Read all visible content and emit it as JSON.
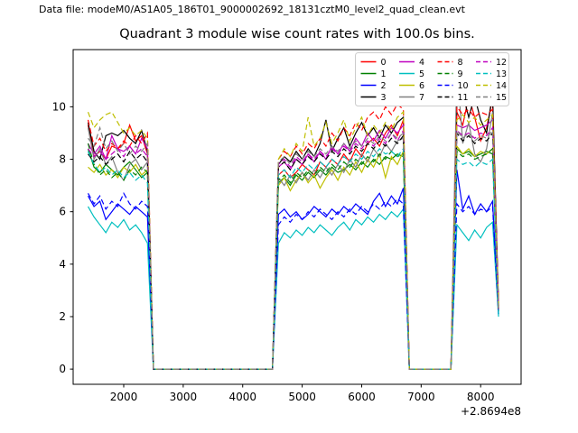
{
  "header": {
    "data_file_label": "Data file: modeM0/AS1A05_186T01_9000002692_18131cztM0_level2_quad_clean.evt"
  },
  "chart_data": {
    "type": "line",
    "title": "Quadrant 3 module wise count rates with 100.0s bins.",
    "xlabel": "",
    "ylabel": "",
    "x_offset_text": "+2.8694e8",
    "xlim": [
      1150,
      8680
    ],
    "ylim": [
      -0.58,
      12.18
    ],
    "x_ticks": [
      2000,
      3000,
      4000,
      5000,
      6000,
      7000,
      8000
    ],
    "y_ticks": [
      0,
      2,
      4,
      6,
      8,
      10
    ],
    "grid": false,
    "legend_position": "upper right",
    "legend_columns": 4,
    "x_start": 1400,
    "x_step": 100,
    "series": [
      {
        "name": "0",
        "color": "#ff0000",
        "style": "solid",
        "values": [
          9.3,
          8.1,
          8.3,
          8.0,
          8.5,
          8.4,
          8.6,
          9.3,
          8.7,
          8.9,
          8.2,
          0,
          0,
          0,
          0,
          0,
          0,
          0,
          0,
          0,
          0,
          0,
          0,
          0,
          0,
          0,
          0,
          0,
          0,
          0,
          0,
          0,
          7.4,
          7.6,
          7.3,
          7.5,
          7.8,
          7.6,
          7.4,
          7.9,
          7.7,
          8.0,
          7.8,
          8.2,
          7.9,
          8.4,
          8.1,
          8.6,
          8.8,
          8.5,
          9.0,
          9.3,
          8.9,
          9.5,
          0,
          0,
          0,
          0,
          0,
          0,
          0,
          0,
          9.8,
          9.3,
          10.4,
          9.6,
          8.7,
          9.2,
          10.3,
          2.4
        ]
      },
      {
        "name": "1",
        "color": "#008000",
        "style": "solid",
        "values": [
          8.4,
          7.7,
          7.5,
          7.8,
          7.6,
          7.4,
          7.7,
          7.9,
          7.6,
          7.3,
          7.5,
          0,
          0,
          0,
          0,
          0,
          0,
          0,
          0,
          0,
          0,
          0,
          0,
          0,
          0,
          0,
          0,
          0,
          0,
          0,
          0,
          0,
          7.1,
          7.3,
          7.0,
          7.4,
          7.2,
          7.5,
          7.3,
          7.6,
          7.4,
          7.7,
          7.5,
          7.6,
          7.8,
          7.6,
          7.9,
          7.7,
          8.0,
          7.8,
          8.1,
          8.0,
          8.2,
          8.1,
          0,
          0,
          0,
          0,
          0,
          0,
          0,
          0,
          8.4,
          8.2,
          8.3,
          8.1,
          8.2,
          8.3,
          8.2,
          2.2
        ]
      },
      {
        "name": "2",
        "color": "#0000ff",
        "style": "solid",
        "values": [
          6.6,
          6.2,
          6.4,
          5.7,
          6.0,
          6.3,
          6.1,
          5.9,
          6.2,
          6.0,
          5.8,
          0,
          0,
          0,
          0,
          0,
          0,
          0,
          0,
          0,
          0,
          0,
          0,
          0,
          0,
          0,
          0,
          0,
          0,
          0,
          0,
          0,
          5.9,
          6.1,
          5.8,
          6.0,
          5.7,
          5.9,
          6.2,
          6.0,
          5.8,
          6.1,
          5.9,
          6.2,
          6.0,
          6.3,
          6.1,
          5.9,
          6.4,
          6.7,
          6.2,
          6.6,
          6.3,
          6.9,
          0,
          0,
          0,
          0,
          0,
          0,
          0,
          0,
          7.6,
          6.1,
          6.6,
          5.9,
          6.3,
          6.0,
          6.4,
          2.1
        ]
      },
      {
        "name": "3",
        "color": "#000000",
        "style": "solid",
        "values": [
          9.4,
          8.3,
          8.0,
          8.9,
          9.0,
          8.9,
          9.1,
          8.8,
          8.6,
          9.1,
          8.3,
          0,
          0,
          0,
          0,
          0,
          0,
          0,
          0,
          0,
          0,
          0,
          0,
          0,
          0,
          0,
          0,
          0,
          0,
          0,
          0,
          0,
          7.8,
          8.1,
          7.9,
          8.3,
          8.0,
          8.4,
          8.1,
          8.6,
          9.5,
          8.3,
          8.8,
          9.2,
          8.5,
          9.0,
          9.4,
          8.9,
          9.2,
          8.8,
          9.3,
          9.0,
          9.4,
          9.6,
          0,
          0,
          0,
          0,
          0,
          0,
          0,
          0,
          10.2,
          10.5,
          9.6,
          10.4,
          9.5,
          9.0,
          10.5,
          2.5
        ]
      },
      {
        "name": "4",
        "color": "#bf00bf",
        "style": "solid",
        "values": [
          8.6,
          8.2,
          8.5,
          8.0,
          8.9,
          8.4,
          8.3,
          8.5,
          8.2,
          8.8,
          8.4,
          0,
          0,
          0,
          0,
          0,
          0,
          0,
          0,
          0,
          0,
          0,
          0,
          0,
          0,
          0,
          0,
          0,
          0,
          0,
          0,
          0,
          7.7,
          7.9,
          7.6,
          8.0,
          7.8,
          8.2,
          7.9,
          8.3,
          8.0,
          8.5,
          8.2,
          8.6,
          8.3,
          8.8,
          8.5,
          9.0,
          8.7,
          9.1,
          8.8,
          9.2,
          9.0,
          9.3,
          0,
          0,
          0,
          0,
          0,
          0,
          0,
          0,
          9.3,
          9.2,
          9.3,
          9.1,
          9.2,
          9.3,
          9.5,
          2.3
        ]
      },
      {
        "name": "5",
        "color": "#00bfbf",
        "style": "solid",
        "values": [
          6.2,
          5.8,
          5.5,
          5.2,
          5.6,
          5.4,
          5.7,
          5.3,
          5.5,
          5.2,
          4.8,
          0,
          0,
          0,
          0,
          0,
          0,
          0,
          0,
          0,
          0,
          0,
          0,
          0,
          0,
          0,
          0,
          0,
          0,
          0,
          0,
          0,
          4.8,
          5.2,
          5.0,
          5.3,
          5.1,
          5.4,
          5.2,
          5.5,
          5.3,
          5.1,
          5.4,
          5.6,
          5.3,
          5.7,
          5.5,
          5.8,
          5.6,
          5.9,
          5.7,
          6.0,
          5.8,
          6.1,
          0,
          0,
          0,
          0,
          0,
          0,
          0,
          0,
          5.5,
          5.2,
          4.9,
          5.3,
          5.0,
          5.4,
          5.6,
          2.0
        ]
      },
      {
        "name": "6",
        "color": "#bfbf00",
        "style": "solid",
        "values": [
          7.7,
          7.5,
          7.8,
          7.4,
          7.6,
          7.3,
          7.7,
          7.5,
          7.8,
          7.4,
          7.6,
          0,
          0,
          0,
          0,
          0,
          0,
          0,
          0,
          0,
          0,
          0,
          0,
          0,
          0,
          0,
          0,
          0,
          0,
          0,
          0,
          0,
          7.0,
          7.3,
          6.8,
          7.2,
          7.5,
          7.1,
          7.4,
          6.9,
          7.3,
          7.6,
          7.2,
          7.7,
          7.4,
          7.9,
          7.5,
          8.0,
          7.7,
          8.2,
          7.3,
          8.1,
          7.8,
          8.3,
          0,
          0,
          0,
          0,
          0,
          0,
          0,
          0,
          8.5,
          8.2,
          8.4,
          8.1,
          8.3,
          8.2,
          8.4,
          2.2
        ]
      },
      {
        "name": "7",
        "color": "#808080",
        "style": "solid",
        "values": [
          9.2,
          8.0,
          8.4,
          7.8,
          8.1,
          7.5,
          7.2,
          7.8,
          8.0,
          7.6,
          7.9,
          0,
          0,
          0,
          0,
          0,
          0,
          0,
          0,
          0,
          0,
          0,
          0,
          0,
          0,
          0,
          0,
          0,
          0,
          0,
          0,
          0,
          7.3,
          7.0,
          7.4,
          7.1,
          7.5,
          7.2,
          7.6,
          7.3,
          7.7,
          7.4,
          7.8,
          7.5,
          8.0,
          7.7,
          8.2,
          7.9,
          8.4,
          8.1,
          8.6,
          8.3,
          8.7,
          8.8,
          0,
          0,
          0,
          0,
          0,
          0,
          0,
          0,
          11.6,
          8.6,
          9.4,
          8.2,
          7.9,
          8.4,
          9.8,
          2.3
        ]
      },
      {
        "name": "8",
        "color": "#ff0000",
        "style": "dashed",
        "values": [
          9.5,
          8.5,
          8.8,
          8.3,
          8.6,
          8.4,
          8.7,
          8.5,
          8.9,
          8.6,
          9.0,
          0,
          0,
          0,
          0,
          0,
          0,
          0,
          0,
          0,
          0,
          0,
          0,
          0,
          0,
          0,
          0,
          0,
          0,
          0,
          0,
          0,
          8.0,
          8.3,
          8.1,
          8.5,
          8.2,
          8.6,
          8.4,
          8.8,
          8.5,
          9.0,
          8.7,
          9.2,
          8.9,
          9.4,
          9.1,
          9.6,
          9.8,
          9.5,
          10.0,
          9.7,
          10.1,
          9.9,
          0,
          0,
          0,
          0,
          0,
          0,
          0,
          0,
          10.0,
          9.7,
          9.9,
          9.6,
          9.8,
          9.7,
          9.9,
          2.4
        ]
      },
      {
        "name": "9",
        "color": "#008000",
        "style": "dashed",
        "values": [
          8.6,
          7.8,
          7.4,
          7.6,
          7.3,
          7.5,
          7.2,
          7.6,
          7.4,
          7.7,
          7.5,
          0,
          0,
          0,
          0,
          0,
          0,
          0,
          0,
          0,
          0,
          0,
          0,
          0,
          0,
          0,
          0,
          0,
          0,
          0,
          0,
          0,
          7.2,
          7.4,
          7.1,
          7.5,
          7.3,
          7.6,
          7.4,
          7.7,
          7.5,
          7.8,
          7.6,
          7.9,
          7.7,
          8.0,
          7.8,
          8.1,
          7.9,
          8.2,
          8.0,
          8.3,
          8.1,
          8.2,
          0,
          0,
          0,
          0,
          0,
          0,
          0,
          0,
          8.3,
          8.1,
          8.2,
          8.0,
          8.1,
          8.2,
          8.4,
          2.2
        ]
      },
      {
        "name": "10",
        "color": "#0000ff",
        "style": "dashed",
        "values": [
          6.7,
          6.3,
          6.6,
          6.1,
          6.4,
          6.2,
          6.7,
          6.3,
          6.1,
          6.4,
          6.2,
          0,
          0,
          0,
          0,
          0,
          0,
          0,
          0,
          0,
          0,
          0,
          0,
          0,
          0,
          0,
          0,
          0,
          0,
          0,
          0,
          0,
          5.5,
          5.8,
          5.6,
          5.9,
          5.7,
          6.0,
          5.8,
          6.1,
          5.9,
          5.7,
          6.0,
          5.8,
          6.1,
          5.9,
          6.2,
          6.0,
          6.3,
          6.1,
          6.4,
          6.2,
          6.5,
          6.3,
          0,
          0,
          0,
          0,
          0,
          0,
          0,
          0,
          6.3,
          6.0,
          6.2,
          5.9,
          6.1,
          6.0,
          6.2,
          2.1
        ]
      },
      {
        "name": "11",
        "color": "#000000",
        "style": "dashed",
        "values": [
          8.2,
          7.9,
          8.1,
          7.8,
          8.0,
          8.2,
          7.9,
          8.3,
          8.0,
          8.2,
          7.9,
          0,
          0,
          0,
          0,
          0,
          0,
          0,
          0,
          0,
          0,
          0,
          0,
          0,
          0,
          0,
          0,
          0,
          0,
          0,
          0,
          0,
          7.7,
          7.9,
          7.6,
          8.0,
          7.8,
          8.1,
          7.9,
          8.2,
          8.0,
          8.3,
          8.1,
          8.4,
          8.2,
          8.5,
          8.3,
          8.6,
          8.4,
          8.7,
          8.5,
          8.8,
          8.6,
          8.9,
          0,
          0,
          0,
          0,
          0,
          0,
          0,
          0,
          9.0,
          8.7,
          8.9,
          8.6,
          8.8,
          8.7,
          9.0,
          2.3
        ]
      },
      {
        "name": "12",
        "color": "#bf00bf",
        "style": "dashed",
        "values": [
          8.4,
          8.1,
          8.3,
          8.0,
          8.2,
          8.4,
          8.1,
          8.5,
          8.2,
          8.4,
          8.1,
          0,
          0,
          0,
          0,
          0,
          0,
          0,
          0,
          0,
          0,
          0,
          0,
          0,
          0,
          0,
          0,
          0,
          0,
          0,
          0,
          0,
          7.8,
          8.0,
          7.7,
          8.1,
          7.9,
          8.2,
          8.0,
          8.3,
          8.1,
          8.4,
          8.2,
          8.5,
          8.3,
          8.6,
          8.4,
          8.7,
          8.5,
          8.8,
          8.6,
          9.0,
          8.7,
          9.1,
          0,
          0,
          0,
          0,
          0,
          0,
          0,
          0,
          9.1,
          8.9,
          9.0,
          8.8,
          9.0,
          8.9,
          9.2,
          2.3
        ]
      },
      {
        "name": "13",
        "color": "#00bfbf",
        "style": "dashed",
        "values": [
          8.3,
          7.8,
          7.5,
          7.7,
          7.4,
          7.6,
          7.3,
          7.5,
          7.2,
          7.4,
          7.1,
          0,
          0,
          0,
          0,
          0,
          0,
          0,
          0,
          0,
          0,
          0,
          0,
          0,
          0,
          0,
          0,
          0,
          0,
          0,
          0,
          0,
          7.4,
          7.6,
          7.3,
          7.7,
          7.5,
          7.8,
          7.6,
          7.9,
          7.7,
          8.0,
          7.8,
          8.1,
          7.9,
          8.2,
          8.0,
          8.3,
          8.1,
          8.4,
          8.2,
          8.3,
          8.1,
          8.4,
          0,
          0,
          0,
          0,
          0,
          0,
          0,
          0,
          8.0,
          7.8,
          7.9,
          7.7,
          7.9,
          7.8,
          8.0,
          2.1
        ]
      },
      {
        "name": "14",
        "color": "#bfbf00",
        "style": "dashed",
        "values": [
          9.8,
          9.2,
          9.5,
          9.7,
          9.8,
          9.4,
          9.0,
          9.2,
          8.9,
          9.1,
          8.8,
          0,
          0,
          0,
          0,
          0,
          0,
          0,
          0,
          0,
          0,
          0,
          0,
          0,
          0,
          0,
          0,
          0,
          0,
          0,
          0,
          0,
          8.0,
          8.4,
          8.1,
          8.6,
          8.3,
          9.6,
          8.5,
          8.8,
          9.4,
          8.6,
          9.0,
          9.5,
          8.7,
          9.2,
          9.6,
          8.9,
          9.3,
          9.0,
          9.4,
          9.1,
          9.6,
          9.8,
          0,
          0,
          0,
          0,
          0,
          0,
          0,
          0,
          9.5,
          9.7,
          9.4,
          9.6,
          9.3,
          9.5,
          9.7,
          2.4
        ]
      },
      {
        "name": "15",
        "color": "#808080",
        "style": "dashed",
        "values": [
          8.8,
          8.5,
          9.2,
          8.4,
          8.7,
          8.3,
          8.6,
          8.2,
          8.5,
          8.3,
          8.6,
          0,
          0,
          0,
          0,
          0,
          0,
          0,
          0,
          0,
          0,
          0,
          0,
          0,
          0,
          0,
          0,
          0,
          0,
          0,
          0,
          0,
          7.9,
          8.1,
          7.8,
          8.2,
          8.0,
          8.3,
          8.1,
          8.4,
          8.2,
          8.5,
          8.3,
          8.6,
          8.4,
          8.7,
          8.5,
          8.8,
          8.6,
          8.9,
          8.7,
          9.0,
          8.8,
          9.0,
          0,
          0,
          0,
          0,
          0,
          0,
          0,
          0,
          9.1,
          8.8,
          9.0,
          8.7,
          8.9,
          8.8,
          9.1,
          2.3
        ]
      }
    ]
  }
}
